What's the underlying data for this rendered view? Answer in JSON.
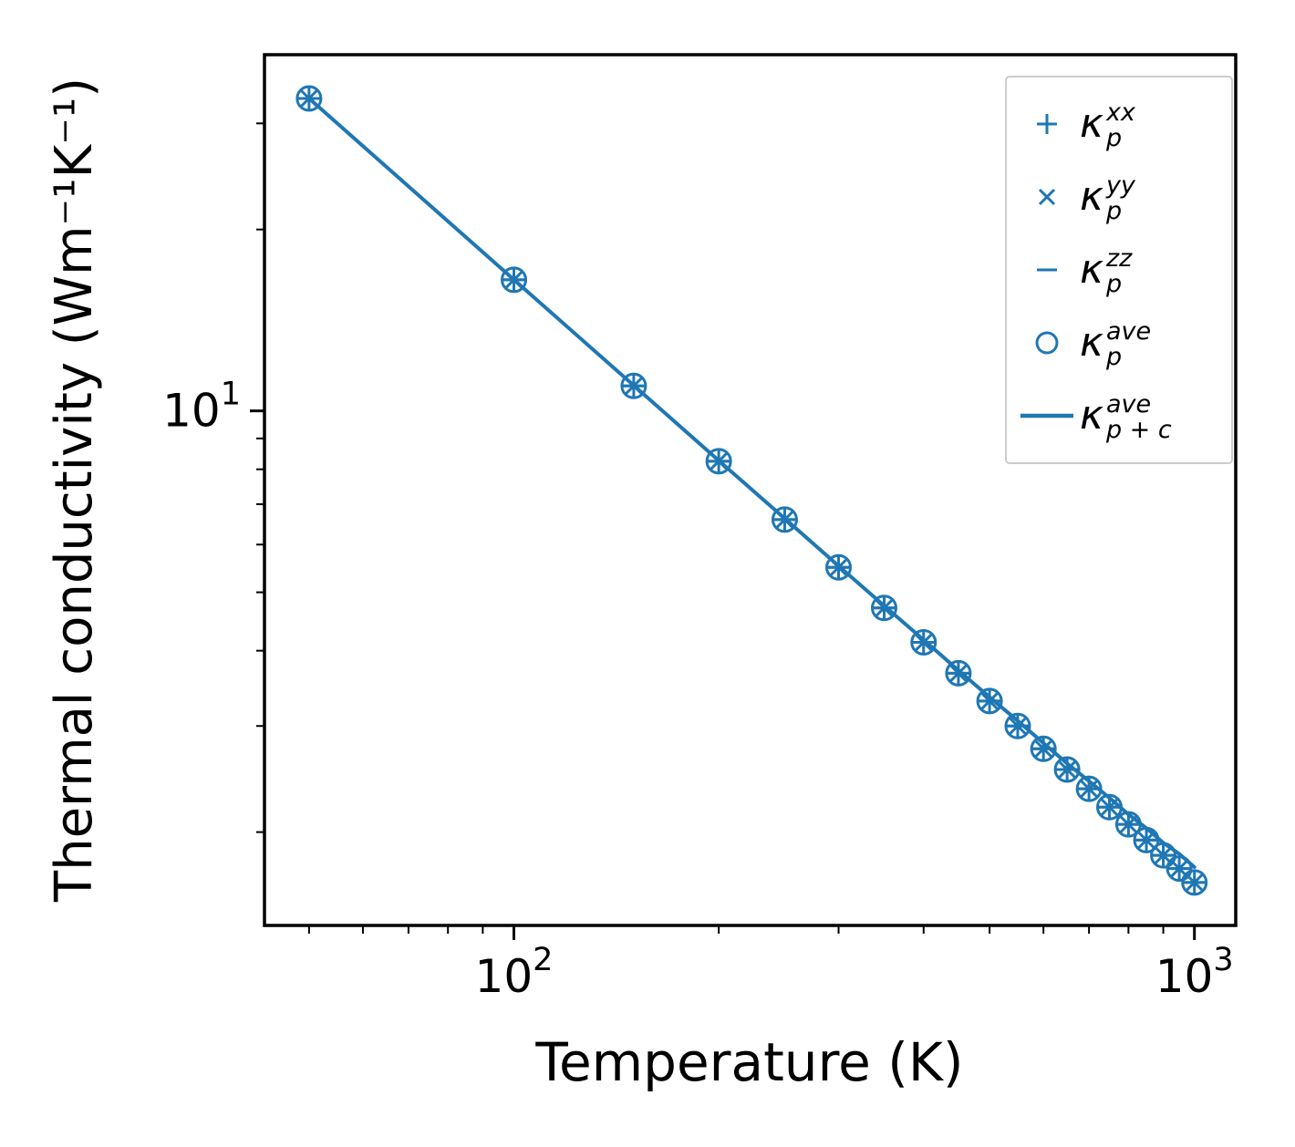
{
  "figure": {
    "background": "#ffffff",
    "spine_color": "#000000",
    "accent_color": "#1f77b4"
  },
  "chart_data": {
    "type": "line",
    "x_scale": "log",
    "y_scale": "log",
    "grid": false,
    "xlabel": "Temperature (K)",
    "ylabel": "Thermal conductivity (Wm⁻¹K⁻¹)",
    "xlim": [
      43,
      1150
    ],
    "ylim": [
      1.4,
      39
    ],
    "color": "#1f77b4",
    "x_major_ticks": [
      {
        "value": 100,
        "base": "10",
        "exp": "2"
      },
      {
        "value": 1000,
        "base": "10",
        "exp": "3"
      }
    ],
    "x_minor_ticks": [
      50,
      60,
      70,
      80,
      90,
      200,
      300,
      400,
      500,
      600,
      700,
      800,
      900
    ],
    "y_major_ticks": [
      {
        "value": 10,
        "base": "10",
        "exp": "1"
      }
    ],
    "y_minor_ticks": [
      2,
      3,
      4,
      5,
      6,
      7,
      8,
      9,
      20,
      30
    ],
    "temperatures": [
      50,
      100,
      150,
      200,
      250,
      300,
      350,
      400,
      450,
      500,
      550,
      600,
      650,
      700,
      750,
      800,
      850,
      900,
      950,
      1000
    ],
    "series": [
      {
        "name": "kappa_p_xx",
        "marker": "plus",
        "values": [
          33.0,
          16.5,
          11.0,
          8.25,
          6.6,
          5.5,
          4.71,
          4.13,
          3.67,
          3.3,
          3.0,
          2.75,
          2.54,
          2.36,
          2.2,
          2.06,
          1.94,
          1.83,
          1.74,
          1.65
        ]
      },
      {
        "name": "kappa_p_yy",
        "marker": "x",
        "values": [
          33.0,
          16.5,
          11.0,
          8.25,
          6.6,
          5.5,
          4.71,
          4.13,
          3.67,
          3.3,
          3.0,
          2.75,
          2.54,
          2.36,
          2.2,
          2.06,
          1.94,
          1.83,
          1.74,
          1.65
        ]
      },
      {
        "name": "kappa_p_zz",
        "marker": "hline",
        "values": [
          33.0,
          16.5,
          11.0,
          8.25,
          6.6,
          5.5,
          4.71,
          4.13,
          3.67,
          3.3,
          3.0,
          2.75,
          2.54,
          2.36,
          2.2,
          2.06,
          1.94,
          1.83,
          1.74,
          1.65
        ]
      },
      {
        "name": "kappa_p_ave",
        "marker": "circle",
        "values": [
          33.0,
          16.5,
          11.0,
          8.25,
          6.6,
          5.5,
          4.71,
          4.13,
          3.67,
          3.3,
          3.0,
          2.75,
          2.54,
          2.36,
          2.2,
          2.06,
          1.94,
          1.83,
          1.74,
          1.65
        ]
      },
      {
        "name": "kappa_p_plus_c_ave",
        "marker": "line",
        "values": [
          33.01,
          16.51,
          11.02,
          8.27,
          6.63,
          5.53,
          4.75,
          4.17,
          3.71,
          3.35,
          3.06,
          2.81,
          2.6,
          2.43,
          2.28,
          2.14,
          2.03,
          1.92,
          1.84,
          1.75
        ]
      }
    ],
    "legend": {
      "position": "upper right",
      "items": [
        {
          "marker": "plus",
          "symbol": "κ",
          "sup": "xx",
          "sub": "p"
        },
        {
          "marker": "x",
          "symbol": "κ",
          "sup": "yy",
          "sub": "p"
        },
        {
          "marker": "hline",
          "symbol": "κ",
          "sup": "zz",
          "sub": "p"
        },
        {
          "marker": "circle",
          "symbol": "κ",
          "sup": "ave",
          "sub": "p"
        },
        {
          "marker": "line",
          "symbol": "κ",
          "sup": "ave",
          "sub": "p + c"
        }
      ]
    }
  }
}
